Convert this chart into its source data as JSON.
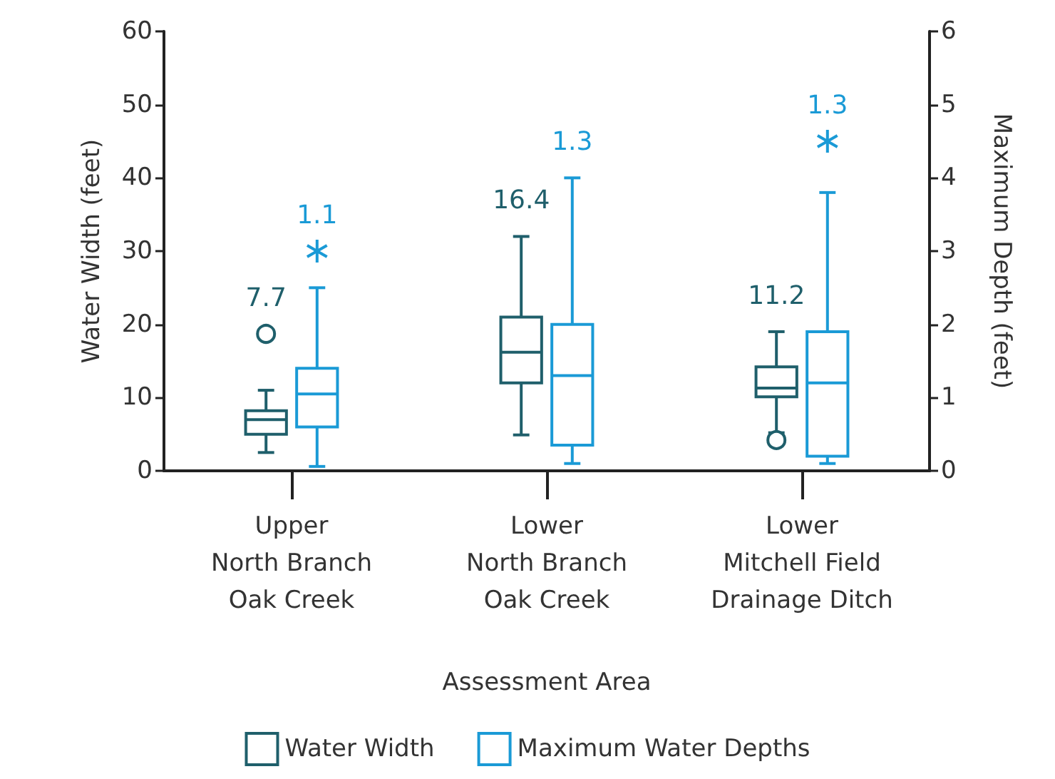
{
  "chart_data": {
    "type": "box",
    "xlabel": "Assessment Area",
    "ylabel": "Water Width (feet)",
    "y2label": "Maximum Depth (feet)",
    "categories": [
      "Upper\nNorth Branch\nOak Creek",
      "Lower\nNorth Branch\nOak Creek",
      "Lower\nMitchell Field\nDrainage Ditch"
    ],
    "ylim": [
      0,
      60
    ],
    "yticks": [
      0,
      10,
      20,
      30,
      40,
      50,
      60
    ],
    "y2lim": [
      0,
      6
    ],
    "y2ticks": [
      0,
      1,
      2,
      3,
      4,
      5,
      6
    ],
    "grid": false,
    "legend": "bottom",
    "series": [
      {
        "name": "Water Width",
        "color": "#1f5f6b",
        "marker": "circle",
        "value_labels": [
          "7.7",
          "16.4",
          "11.2"
        ],
        "boxes": [
          {
            "low": 2.5,
            "q1": 5,
            "median": 7,
            "q3": 8.2,
            "high": 11,
            "outliers": [
              18.7
            ]
          },
          {
            "low": 4.9,
            "q1": 12,
            "median": 16.2,
            "q3": 21,
            "high": 32
          },
          {
            "low": 5.2,
            "q1": 10.1,
            "median": 11.3,
            "q3": 14.2,
            "high": 19,
            "outliers": [
              4.2
            ]
          }
        ]
      },
      {
        "name": "Maximum Water Depths",
        "color": "#1a9ad6",
        "axis": "y2",
        "marker": "star",
        "value_labels": [
          "1.1",
          "1.3",
          "1.3"
        ],
        "boxes": [
          {
            "low": 0.06,
            "q1": 0.6,
            "median": 1.05,
            "q3": 1.4,
            "high": 2.5,
            "outliers": [
              3.0
            ]
          },
          {
            "low": 0.1,
            "q1": 0.35,
            "median": 1.3,
            "q3": 2.0,
            "high": 4.0
          },
          {
            "low": 0.1,
            "q1": 0.2,
            "median": 1.2,
            "q3": 1.9,
            "high": 3.8,
            "outliers": [
              4.5
            ]
          }
        ]
      }
    ]
  }
}
